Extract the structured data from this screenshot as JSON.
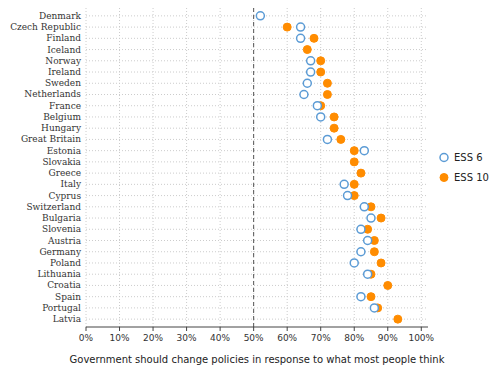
{
  "chart_data": {
    "type": "dot",
    "orientation": "horizontal",
    "xlabel": "Government should change policies in response to what most people think",
    "categories": [
      "Denmark",
      "Czech Republic",
      "Finland",
      "Iceland",
      "Norway",
      "Ireland",
      "Sweden",
      "Netherlands",
      "France",
      "Belgium",
      "Hungary",
      "Great Britain",
      "Estonia",
      "Slovakia",
      "Greece",
      "Italy",
      "Cyprus",
      "Switzerland",
      "Bulgaria",
      "Slovenia",
      "Austria",
      "Germany",
      "Poland",
      "Lithuania",
      "Croatia",
      "Spain",
      "Portugal",
      "Latvia"
    ],
    "series": [
      {
        "name": "ESS 6",
        "color": "#5B9BD5",
        "marker": "hollow-circle",
        "values": [
          52,
          64,
          64,
          null,
          67,
          67,
          66,
          65,
          69,
          70,
          null,
          72,
          83,
          null,
          null,
          77,
          78,
          83,
          85,
          82,
          84,
          82,
          80,
          84,
          null,
          82,
          86,
          null
        ]
      },
      {
        "name": "ESS 10",
        "color": "#FF8C00",
        "marker": "circle",
        "values": [
          null,
          60,
          68,
          66,
          70,
          70,
          72,
          72,
          70,
          74,
          74,
          76,
          80,
          80,
          82,
          80,
          80,
          85,
          88,
          84,
          86,
          86,
          88,
          85,
          90,
          85,
          87,
          93
        ]
      }
    ],
    "xlim": [
      0,
      102
    ],
    "xticks": [
      {
        "value": 0,
        "label": "0%"
      },
      {
        "value": 10,
        "label": "10%"
      },
      {
        "value": 20,
        "label": "20%"
      },
      {
        "value": 30,
        "label": "30%"
      },
      {
        "value": 40,
        "label": "40%"
      },
      {
        "value": 50,
        "label": "50%"
      },
      {
        "value": 60,
        "label": "60%"
      },
      {
        "value": 70,
        "label": "70%"
      },
      {
        "value": 80,
        "label": "80%"
      },
      {
        "value": 90,
        "label": "90%"
      },
      {
        "value": 100,
        "label": "100%"
      }
    ],
    "vline": 50,
    "grid": true,
    "legend": "right"
  }
}
